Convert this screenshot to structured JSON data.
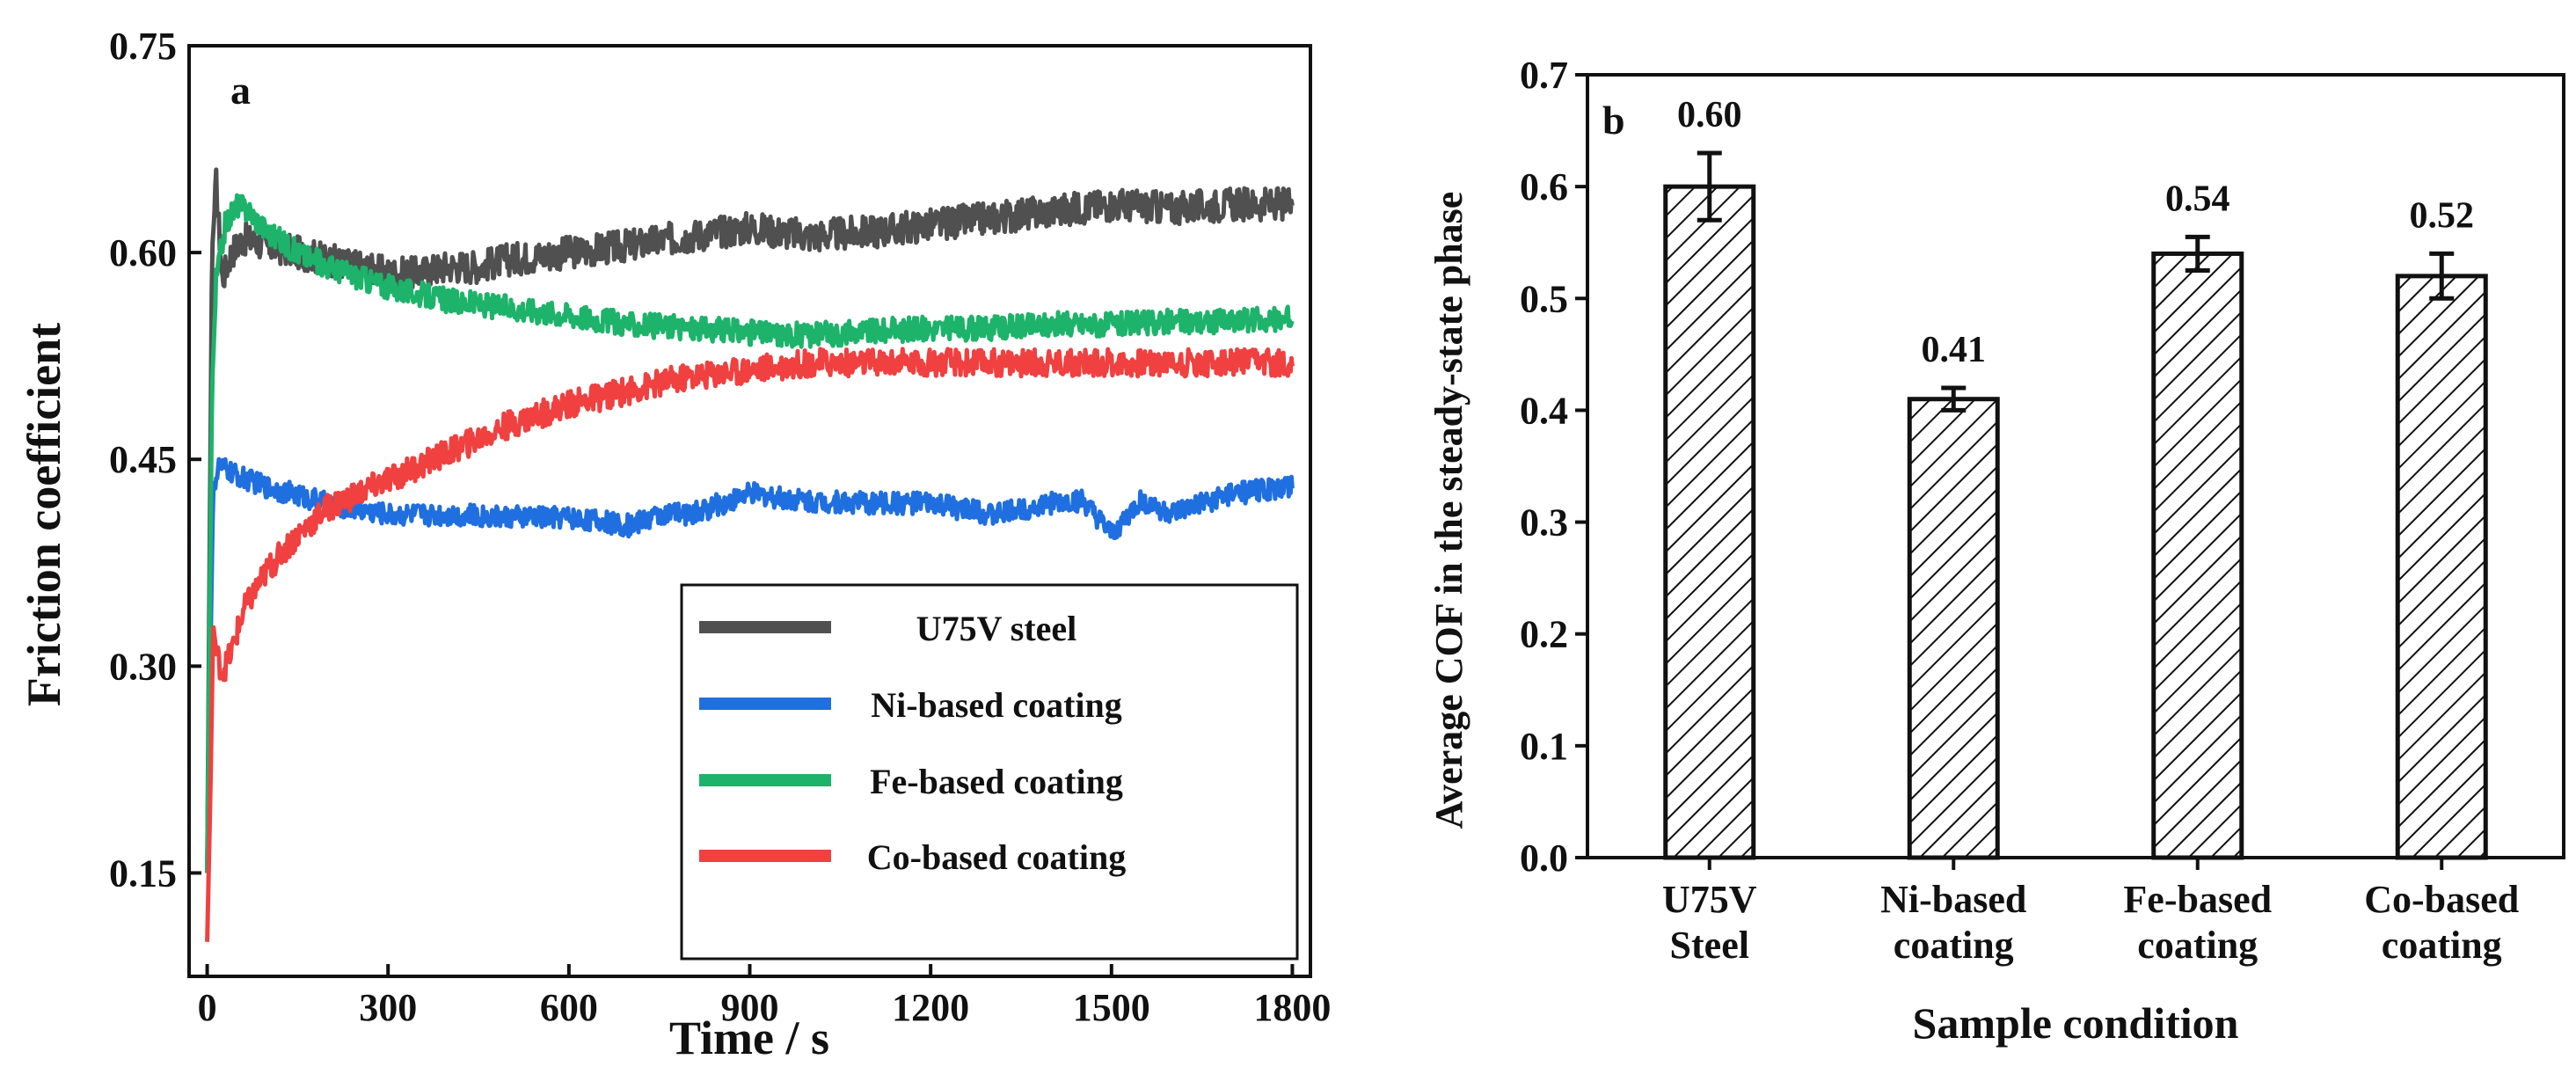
{
  "chart_data": [
    {
      "panel_label": "a",
      "type": "line",
      "title": "",
      "xlabel": "Time / s",
      "ylabel": "Friction coefficient",
      "xlim": [
        -30,
        1830
      ],
      "ylim": [
        0.075,
        0.75
      ],
      "x_ticks": [
        0,
        300,
        600,
        900,
        1200,
        1500,
        1800
      ],
      "y_ticks": [
        "0.15",
        "0.30",
        "0.45",
        "0.60",
        "0.75"
      ],
      "legend_position": "bottom-right",
      "series": [
        {
          "name": "U75V steel",
          "color": "#505050",
          "noise": 0.012,
          "points": [
            [
              0,
              0.15
            ],
            [
              8,
              0.6
            ],
            [
              15,
              0.65
            ],
            [
              25,
              0.58
            ],
            [
              40,
              0.6
            ],
            [
              60,
              0.61
            ],
            [
              100,
              0.605
            ],
            [
              150,
              0.6
            ],
            [
              200,
              0.595
            ],
            [
              250,
              0.59
            ],
            [
              300,
              0.585
            ],
            [
              350,
              0.585
            ],
            [
              400,
              0.59
            ],
            [
              450,
              0.59
            ],
            [
              500,
              0.595
            ],
            [
              600,
              0.6
            ],
            [
              700,
              0.605
            ],
            [
              800,
              0.612
            ],
            [
              900,
              0.618
            ],
            [
              1000,
              0.612
            ],
            [
              1100,
              0.615
            ],
            [
              1200,
              0.62
            ],
            [
              1300,
              0.625
            ],
            [
              1400,
              0.63
            ],
            [
              1500,
              0.635
            ],
            [
              1600,
              0.632
            ],
            [
              1700,
              0.635
            ],
            [
              1800,
              0.635
            ]
          ]
        },
        {
          "name": "Ni-based coating",
          "color": "#1f6fe0",
          "noise": 0.008,
          "points": [
            [
              0,
              0.15
            ],
            [
              5,
              0.3
            ],
            [
              10,
              0.43
            ],
            [
              20,
              0.445
            ],
            [
              50,
              0.438
            ],
            [
              100,
              0.43
            ],
            [
              200,
              0.418
            ],
            [
              300,
              0.41
            ],
            [
              400,
              0.41
            ],
            [
              500,
              0.408
            ],
            [
              600,
              0.408
            ],
            [
              700,
              0.402
            ],
            [
              750,
              0.41
            ],
            [
              800,
              0.41
            ],
            [
              900,
              0.425
            ],
            [
              1000,
              0.42
            ],
            [
              1100,
              0.418
            ],
            [
              1200,
              0.418
            ],
            [
              1300,
              0.41
            ],
            [
              1400,
              0.418
            ],
            [
              1450,
              0.42
            ],
            [
              1500,
              0.395
            ],
            [
              1550,
              0.42
            ],
            [
              1600,
              0.41
            ],
            [
              1700,
              0.425
            ],
            [
              1800,
              0.43
            ]
          ]
        },
        {
          "name": "Fe-based coating",
          "color": "#1db36a",
          "noise": 0.009,
          "points": [
            [
              0,
              0.15
            ],
            [
              8,
              0.5
            ],
            [
              15,
              0.58
            ],
            [
              30,
              0.62
            ],
            [
              50,
              0.635
            ],
            [
              70,
              0.63
            ],
            [
              100,
              0.615
            ],
            [
              150,
              0.6
            ],
            [
              200,
              0.59
            ],
            [
              300,
              0.575
            ],
            [
              400,
              0.565
            ],
            [
              500,
              0.56
            ],
            [
              600,
              0.555
            ],
            [
              700,
              0.548
            ],
            [
              800,
              0.545
            ],
            [
              900,
              0.542
            ],
            [
              1000,
              0.54
            ],
            [
              1100,
              0.543
            ],
            [
              1200,
              0.545
            ],
            [
              1300,
              0.545
            ],
            [
              1400,
              0.548
            ],
            [
              1500,
              0.548
            ],
            [
              1600,
              0.55
            ],
            [
              1700,
              0.55
            ],
            [
              1800,
              0.552
            ]
          ]
        },
        {
          "name": "Co-based coating",
          "color": "#f04040",
          "noise": 0.01,
          "points": [
            [
              0,
              0.1
            ],
            [
              5,
              0.2
            ],
            [
              10,
              0.33
            ],
            [
              15,
              0.31
            ],
            [
              25,
              0.295
            ],
            [
              40,
              0.31
            ],
            [
              60,
              0.34
            ],
            [
              100,
              0.37
            ],
            [
              150,
              0.395
            ],
            [
              200,
              0.415
            ],
            [
              250,
              0.425
            ],
            [
              300,
              0.435
            ],
            [
              400,
              0.455
            ],
            [
              500,
              0.475
            ],
            [
              600,
              0.49
            ],
            [
              700,
              0.5
            ],
            [
              800,
              0.51
            ],
            [
              900,
              0.515
            ],
            [
              1000,
              0.52
            ],
            [
              1100,
              0.52
            ],
            [
              1200,
              0.52
            ],
            [
              1300,
              0.52
            ],
            [
              1400,
              0.52
            ],
            [
              1500,
              0.52
            ],
            [
              1600,
              0.52
            ],
            [
              1700,
              0.52
            ],
            [
              1800,
              0.52
            ]
          ]
        }
      ]
    },
    {
      "panel_label": "b",
      "type": "bar",
      "title": "",
      "xlabel": "Sample condition",
      "ylabel": "Average COF in the steady-state phase",
      "ylim": [
        0.0,
        0.7
      ],
      "y_ticks": [
        "0.0",
        "0.1",
        "0.2",
        "0.3",
        "0.4",
        "0.5",
        "0.6",
        "0.7"
      ],
      "categories": [
        [
          "U75V",
          "Steel"
        ],
        [
          "Ni-based",
          "coating"
        ],
        [
          "Fe-based",
          "coating"
        ],
        [
          "Co-based",
          "coating"
        ]
      ],
      "values": [
        0.6,
        0.41,
        0.54,
        0.52
      ],
      "errors": [
        0.03,
        0.01,
        0.015,
        0.02
      ],
      "value_labels": [
        "0.60",
        "0.41",
        "0.54",
        "0.52"
      ],
      "bar_fill": "hatched"
    }
  ]
}
